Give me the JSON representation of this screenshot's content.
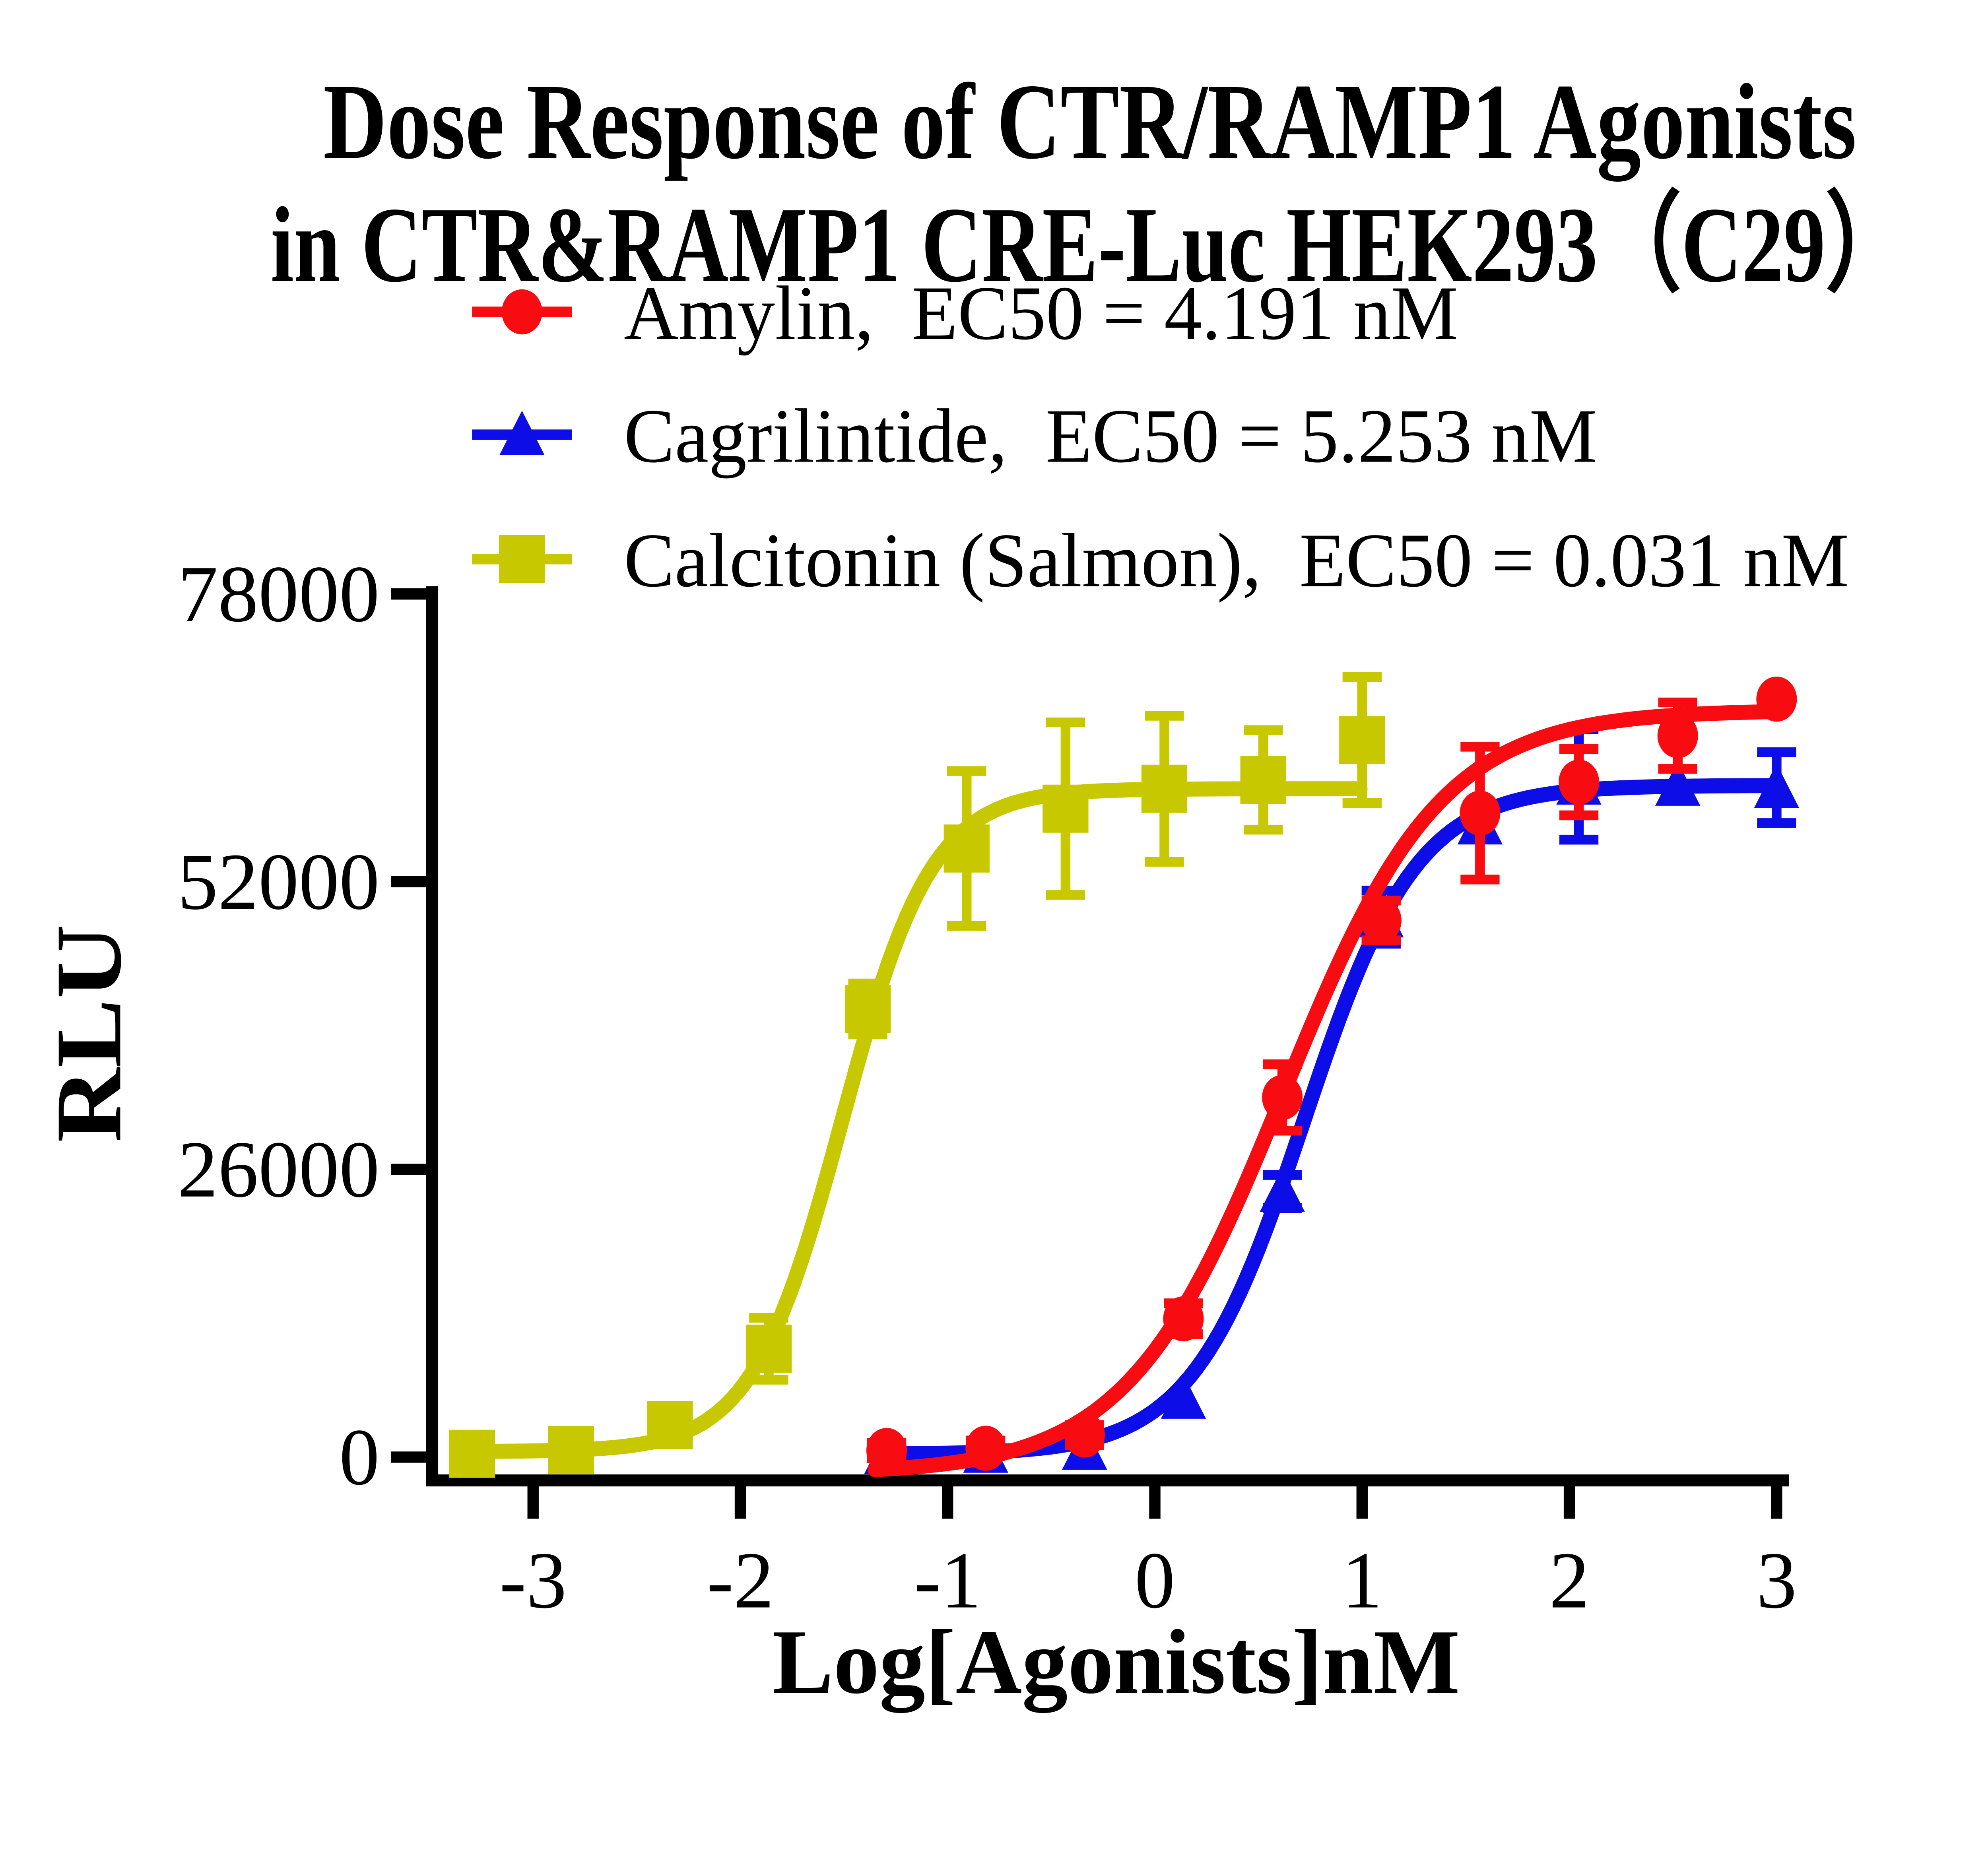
{
  "title": {
    "line1": "Dose Response of CTR/RAMP1 Agonists",
    "line2": "in CTR&RAMP1 CRE-Luc HEK293（C29）"
  },
  "legend": {
    "items": [
      {
        "label": "Amylin,  EC50 = 4.191 nM",
        "marker": "circle",
        "color": "#F80C12"
      },
      {
        "label": "Cagrilintide,  EC50 = 5.253 nM",
        "marker": "triangle",
        "color": "#0D0DE8"
      },
      {
        "label": "Calcitonin (Salmon),  EC50 = 0.031 nM",
        "marker": "square",
        "color": "#C8C800"
      }
    ]
  },
  "chart_data": {
    "type": "scatter",
    "title": "Dose Response of CTR/RAMP1 Agonists in CTR&RAMP1 CRE-Luc HEK293（C29）",
    "xlabel": "Log[Agonists]nM",
    "ylabel": "RLU",
    "x_ticks": [
      -3,
      -2,
      -1,
      0,
      1,
      2,
      3
    ],
    "y_ticks": [
      0,
      26000,
      52000,
      78000
    ],
    "xlim": [
      -3.6,
      3.1
    ],
    "ylim": [
      0,
      78000
    ],
    "grid": false,
    "legend_position": "top-left",
    "series": [
      {
        "name": "Calcitonin (Salmon)",
        "ec50_nM": 0.031,
        "color": "#C8C800",
        "marker": "square",
        "x": [
          -3.294,
          -2.817,
          -2.34,
          -1.863,
          -1.385,
          -0.908,
          -0.431,
          0.046,
          0.523,
          1.0
        ],
        "y": [
          300,
          650,
          2900,
          9800,
          40500,
          55000,
          58600,
          60400,
          61200,
          64800
        ],
        "err": [
          0,
          0,
          1600,
          2800,
          2300,
          7000,
          7800,
          6600,
          4500,
          5700
        ],
        "fit": {
          "bottom": 500,
          "top": 60400,
          "logEC50": -1.509,
          "hill": 2.0,
          "xmin": -3.3,
          "xmax": 1.0
        }
      },
      {
        "name": "Cagrilintide",
        "ec50_nM": 5.253,
        "color": "#0D0DE8",
        "marker": "triangle",
        "x": [
          -1.294,
          -0.816,
          -0.339,
          0.138,
          0.615,
          1.092,
          1.569,
          2.046,
          2.523,
          3.0
        ],
        "y": [
          300,
          420,
          700,
          5300,
          24000,
          48800,
          57200,
          60800,
          60700,
          60500
        ],
        "err": [
          0,
          0,
          0,
          0,
          1500,
          2400,
          0,
          5000,
          0,
          3200
        ],
        "fit": {
          "bottom": 250,
          "top": 60700,
          "logEC50": 0.7204,
          "hill": 1.6,
          "xmin": -1.33,
          "xmax": 3.0
        }
      },
      {
        "name": "Amylin",
        "ec50_nM": 4.191,
        "color": "#F80C12",
        "marker": "circle",
        "x": [
          -1.294,
          -0.816,
          -0.339,
          0.138,
          0.615,
          1.092,
          1.569,
          2.046,
          2.523,
          3.0
        ],
        "y": [
          600,
          800,
          2000,
          12500,
          32500,
          48500,
          58200,
          61000,
          65200,
          68500
        ],
        "err": [
          700,
          700,
          900,
          1400,
          3000,
          1800,
          6000,
          3000,
          3000,
          0
        ],
        "fit": {
          "bottom": -1500,
          "top": 67500,
          "logEC50": 0.6223,
          "hill": 1.15,
          "xmin": -1.35,
          "xmax": 3.0
        }
      }
    ]
  }
}
